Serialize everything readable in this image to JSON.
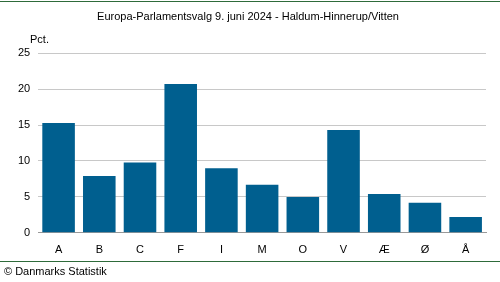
{
  "chart_data": {
    "type": "bar",
    "title": "Europa-Parlamentsvalg 9. juni 2024 - Haldum-Hinnerup/Vitten",
    "y_label": "Pct.",
    "source": "© Danmarks Statistik",
    "categories": [
      "A",
      "B",
      "C",
      "F",
      "I",
      "M",
      "O",
      "V",
      "Æ",
      "Ø",
      "Å"
    ],
    "values": [
      15.3,
      7.9,
      9.8,
      20.7,
      9.0,
      6.7,
      5.0,
      14.3,
      5.4,
      4.2,
      2.2
    ],
    "color": "#005f8f",
    "ylim": [
      0,
      25
    ],
    "yticks": [
      0,
      5,
      10,
      15,
      20,
      25
    ],
    "grid": true
  }
}
